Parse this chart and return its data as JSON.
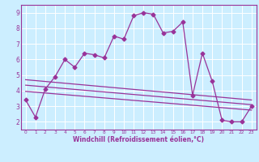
{
  "title": "",
  "xlabel": "Windchill (Refroidissement éolien,°C)",
  "ylabel": "",
  "background_color": "#cceeff",
  "plot_bg_color": "#cceeff",
  "grid_color": "#ffffff",
  "line_color": "#993399",
  "xlim": [
    -0.5,
    23.5
  ],
  "ylim": [
    1.5,
    9.5
  ],
  "yticks": [
    2,
    3,
    4,
    5,
    6,
    7,
    8,
    9
  ],
  "xticks": [
    0,
    1,
    2,
    3,
    4,
    5,
    6,
    7,
    8,
    9,
    10,
    11,
    12,
    13,
    14,
    15,
    16,
    17,
    18,
    19,
    20,
    21,
    22,
    23
  ],
  "main_x": [
    0,
    1,
    2,
    3,
    4,
    5,
    6,
    7,
    8,
    9,
    10,
    11,
    12,
    13,
    14,
    15,
    16,
    17,
    18,
    19,
    20,
    21,
    22,
    23
  ],
  "main_y": [
    3.4,
    2.3,
    4.1,
    4.9,
    6.0,
    5.5,
    6.4,
    6.3,
    6.1,
    7.5,
    7.3,
    8.8,
    9.0,
    8.9,
    7.7,
    7.8,
    8.4,
    3.7,
    6.4,
    4.6,
    2.1,
    2.0,
    2.0,
    3.0
  ],
  "line1_x": [
    0,
    23
  ],
  "line1_y": [
    4.7,
    3.4
  ],
  "line2_x": [
    0,
    23
  ],
  "line2_y": [
    4.35,
    3.1
  ],
  "line3_x": [
    0,
    23
  ],
  "line3_y": [
    3.95,
    2.75
  ],
  "marker": "D",
  "markersize": 2.5,
  "linewidth": 0.9,
  "tick_fontsize_x": 4.2,
  "tick_fontsize_y": 5.5,
  "xlabel_fontsize": 5.5
}
